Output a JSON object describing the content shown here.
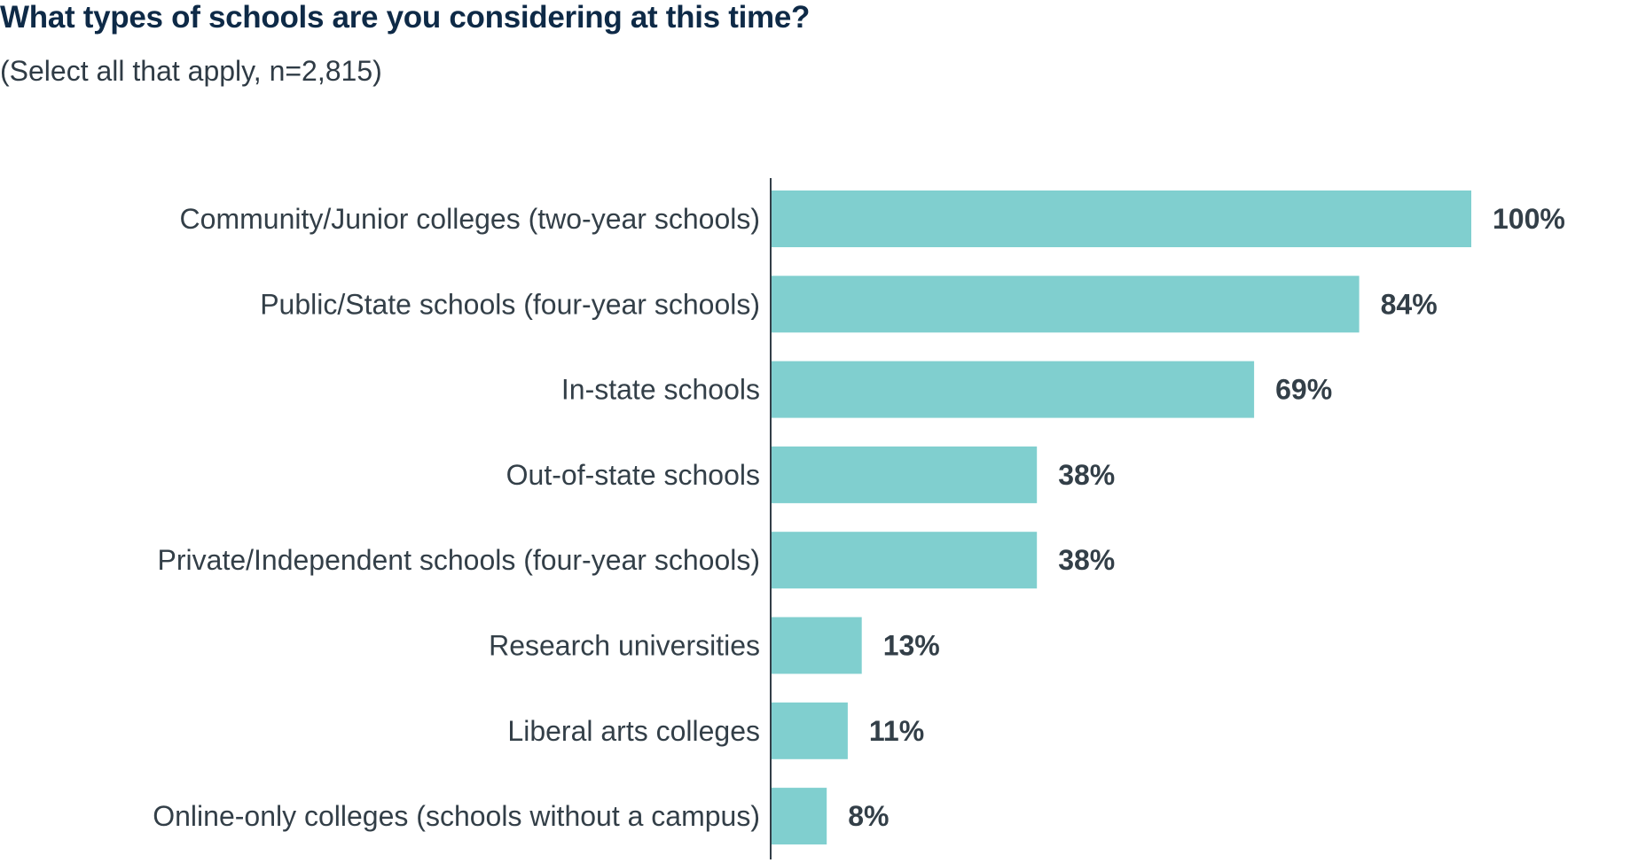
{
  "chart_data": {
    "type": "bar",
    "orientation": "horizontal",
    "title": "What types of schools are you considering at this time?",
    "subtitle": "(Select all that apply, n=2,815)",
    "categories": [
      "Community/Junior colleges (two-year schools)",
      "Public/State schools (four-year schools)",
      "In-state schools",
      "Out-of-state schools",
      "Private/Independent schools (four-year schools)",
      "Research universities",
      "Liberal arts colleges",
      "Online-only colleges (schools without a campus)"
    ],
    "values": [
      100,
      84,
      69,
      38,
      38,
      13,
      11,
      8
    ],
    "value_labels": [
      "100%",
      "84%",
      "69%",
      "38%",
      "38%",
      "13%",
      "11%",
      "8%"
    ],
    "xlim": [
      0,
      100
    ],
    "grid": false,
    "colors": {
      "bar": "#80cfcf",
      "axis": "#333f48",
      "title": "#0e2a47",
      "text": "#333f48"
    }
  }
}
